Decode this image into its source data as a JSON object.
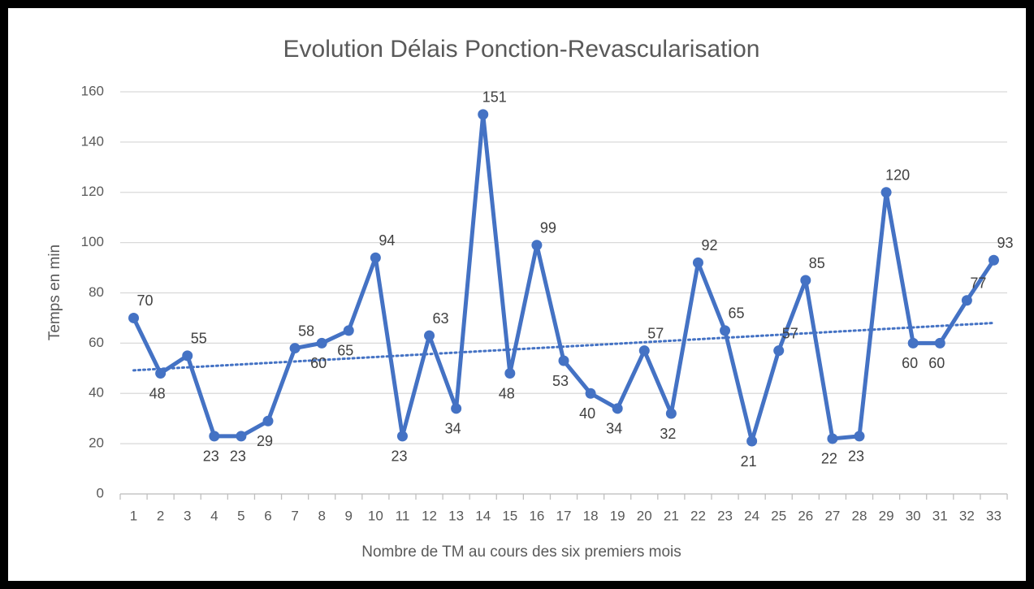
{
  "chart_data": {
    "type": "line",
    "title": "Evolution Délais Ponction-Revascularisation",
    "x_label": "Nombre de TM au cours des six premiers mois",
    "y_label": "Temps en min",
    "categories": [
      "1",
      "2",
      "3",
      "4",
      "5",
      "6",
      "7",
      "8",
      "9",
      "10",
      "11",
      "12",
      "13",
      "14",
      "15",
      "16",
      "17",
      "18",
      "19",
      "20",
      "21",
      "22",
      "23",
      "24",
      "25",
      "26",
      "27",
      "28",
      "29",
      "30",
      "31",
      "32",
      "33"
    ],
    "series": [
      {
        "name": "Temps en min",
        "color": "#4472c4",
        "values": [
          70,
          48,
          55,
          23,
          23,
          29,
          58,
          60,
          65,
          94,
          23,
          63,
          34,
          151,
          48,
          99,
          53,
          40,
          34,
          57,
          32,
          92,
          65,
          21,
          57,
          85,
          22,
          23,
          120,
          60,
          60,
          77,
          93
        ]
      }
    ],
    "ylim": [
      0,
      160
    ],
    "yticks": [
      0,
      20,
      40,
      60,
      80,
      100,
      120,
      140,
      160
    ],
    "grid": true,
    "trendline": "linear",
    "data_labels": true
  }
}
